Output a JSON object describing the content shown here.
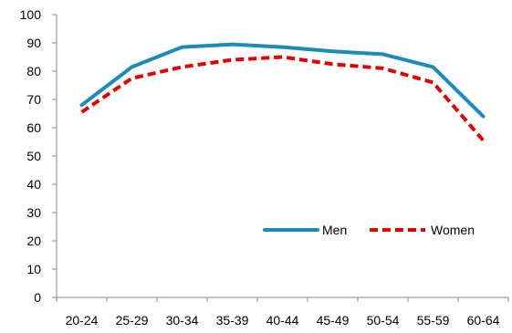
{
  "chart_data": {
    "type": "line",
    "categories": [
      "20-24",
      "25-29",
      "30-34",
      "35-39",
      "40-44",
      "45-49",
      "50-54",
      "55-59",
      "60-64"
    ],
    "series": [
      {
        "name": "Men",
        "values": [
          68,
          81.5,
          88.5,
          89.5,
          88.5,
          87,
          86,
          81.5,
          64
        ],
        "color": "#1c8bb8",
        "dash": "solid"
      },
      {
        "name": "Women",
        "values": [
          65.5,
          77.5,
          81.5,
          84,
          85,
          82.5,
          81,
          76,
          55.5
        ],
        "color": "#e00000",
        "dash": "dashed"
      }
    ],
    "ylim": [
      0,
      100
    ],
    "yticks": [
      0,
      10,
      20,
      30,
      40,
      50,
      60,
      70,
      80,
      90,
      100
    ],
    "grid": false,
    "legend": "bottom-right",
    "title": "",
    "xlabel": "",
    "ylabel": ""
  }
}
